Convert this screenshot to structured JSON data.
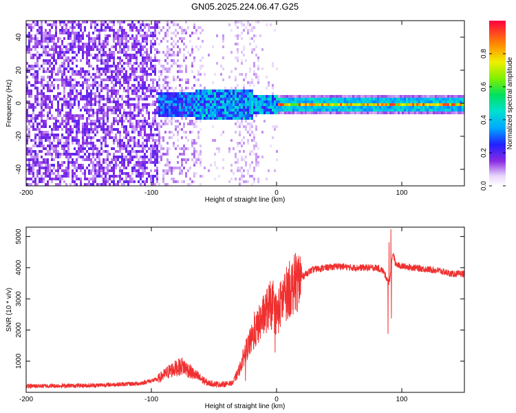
{
  "title": "GN05.2025.224.06.47.G25",
  "chart_data": [
    {
      "type": "heatmap",
      "xlabel": "Height of straight line (km)",
      "ylabel": "Frequency (Hz)",
      "xlim": [
        -200,
        150
      ],
      "ylim": [
        -50,
        50
      ],
      "xticks": [
        -200,
        -100,
        0,
        100
      ],
      "yticks": [
        -40,
        -20,
        0,
        20,
        40
      ],
      "colorbar": {
        "label": "Normalized spectral amplitude",
        "range": [
          0,
          1
        ],
        "ticks": [
          0.0,
          0.2,
          0.4,
          0.6,
          0.8
        ],
        "tick_labels": [
          "0.0",
          "0.2",
          "0.4",
          "0.6",
          "0.8"
        ],
        "colormap": "rainbow (violet to red)"
      },
      "description_points": [
        {
          "x_range": [
            -200,
            -95
          ],
          "pattern": "broadband noise, amplitude ~0.1-0.2"
        },
        {
          "x_range": [
            -95,
            0
          ],
          "pattern": "energy concentrated near 0 Hz, amplitude ~0.2-0.5"
        },
        {
          "x_range": [
            0,
            150
          ],
          "pattern": "narrow line at 0 Hz, amplitude ~0.5-0.95"
        }
      ]
    },
    {
      "type": "line",
      "xlabel": "Height of straight line (km)",
      "ylabel": "SNR (10 * v/v)",
      "xlim": [
        -200,
        150
      ],
      "ylim": [
        0,
        5300
      ],
      "xticks": [
        -200,
        -100,
        0,
        100
      ],
      "yticks": [
        1000,
        2000,
        3000,
        4000,
        5000
      ],
      "grid": false,
      "color": "#f03030",
      "series": [
        {
          "x": [
            -200,
            -150,
            -110,
            -95,
            -85,
            -75,
            -65,
            -55,
            -45,
            -35,
            -30,
            -25,
            -20,
            -15,
            -10,
            -5,
            0,
            5,
            10,
            15,
            20,
            25,
            30,
            40,
            50,
            60,
            70,
            80,
            85,
            90,
            93,
            95,
            100,
            110,
            120,
            130,
            140,
            150
          ],
          "y": [
            200,
            220,
            280,
            420,
            700,
            850,
            550,
            300,
            250,
            300,
            700,
            1300,
            1700,
            2100,
            2500,
            2800,
            2500,
            3000,
            3300,
            3500,
            3700,
            3850,
            3950,
            4000,
            4050,
            4000,
            4000,
            4000,
            3900,
            3500,
            4500,
            4100,
            4050,
            4000,
            3950,
            3900,
            3800,
            3800
          ]
        }
      ]
    }
  ]
}
